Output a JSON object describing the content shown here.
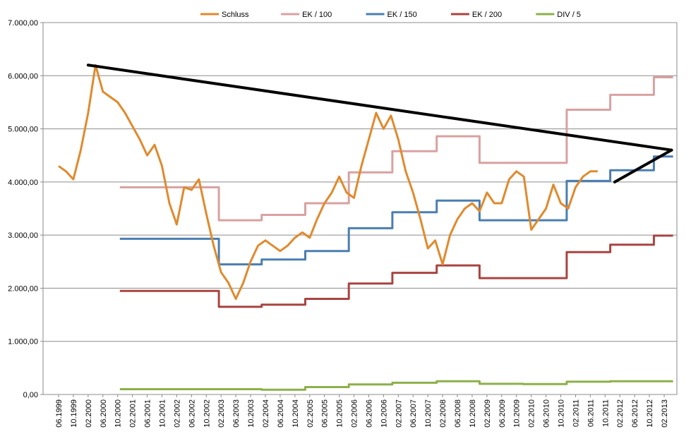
{
  "chart_data": {
    "type": "line",
    "title": "",
    "xlabel": "",
    "ylabel": "",
    "ylim": [
      0,
      7000
    ],
    "grid": "horizontal",
    "legend_position": "top",
    "y_ticks": [
      {
        "value": 0,
        "label": "0,00"
      },
      {
        "value": 1000,
        "label": "1.000,00"
      },
      {
        "value": 2000,
        "label": "2.000,00"
      },
      {
        "value": 3000,
        "label": "3.000,00"
      },
      {
        "value": 4000,
        "label": "4.000,00"
      },
      {
        "value": 5000,
        "label": "5.000,00"
      },
      {
        "value": 6000,
        "label": "6.000,00"
      },
      {
        "value": 7000,
        "label": "7.000,00"
      }
    ],
    "x_tick_labels": [
      "06.1999",
      "10.1999",
      "02.2000",
      "06.2000",
      "10.2000",
      "02.2001",
      "06.2001",
      "10.2001",
      "02.2002",
      "06.2002",
      "10.2002",
      "02.2003",
      "06.2003",
      "10.2003",
      "02.2004",
      "06.2004",
      "10.2004",
      "02.2005",
      "06.2005",
      "10.2005",
      "02.2006",
      "06.2006",
      "10.2006",
      "02.2007",
      "06.2007",
      "10.2007",
      "02.2008",
      "06.2008",
      "10.2008",
      "02.2009",
      "06.2009",
      "10.2009",
      "02.2010",
      "06.2010",
      "10.2010",
      "02.2011",
      "06.2011",
      "10.2011",
      "02.2012",
      "06.2012",
      "10.2012",
      "02.2013"
    ],
    "series": [
      {
        "name": "Schluss",
        "color": "#E08A2E",
        "points": [
          [
            0,
            4300
          ],
          [
            1,
            4200
          ],
          [
            2,
            4050
          ],
          [
            3,
            4600
          ],
          [
            4,
            5300
          ],
          [
            5,
            6200
          ],
          [
            6,
            5700
          ],
          [
            7,
            5600
          ],
          [
            8,
            5500
          ],
          [
            9,
            5300
          ],
          [
            10,
            5050
          ],
          [
            11,
            4800
          ],
          [
            12,
            4500
          ],
          [
            13,
            4700
          ],
          [
            14,
            4300
          ],
          [
            15,
            3600
          ],
          [
            16,
            3200
          ],
          [
            17,
            3900
          ],
          [
            18,
            3850
          ],
          [
            19,
            4050
          ],
          [
            20,
            3400
          ],
          [
            21,
            2800
          ],
          [
            22,
            2300
          ],
          [
            23,
            2100
          ],
          [
            24,
            1800
          ],
          [
            25,
            2100
          ],
          [
            26,
            2500
          ],
          [
            27,
            2800
          ],
          [
            28,
            2900
          ],
          [
            29,
            2800
          ],
          [
            30,
            2700
          ],
          [
            31,
            2800
          ],
          [
            32,
            2950
          ],
          [
            33,
            3050
          ],
          [
            34,
            2950
          ],
          [
            35,
            3300
          ],
          [
            36,
            3600
          ],
          [
            37,
            3800
          ],
          [
            38,
            4100
          ],
          [
            39,
            3800
          ],
          [
            40,
            3700
          ],
          [
            41,
            4300
          ],
          [
            42,
            4800
          ],
          [
            43,
            5300
          ],
          [
            44,
            5000
          ],
          [
            45,
            5250
          ],
          [
            46,
            4800
          ],
          [
            47,
            4200
          ],
          [
            48,
            3800
          ],
          [
            49,
            3300
          ],
          [
            50,
            2750
          ],
          [
            51,
            2900
          ],
          [
            52,
            2450
          ],
          [
            53,
            3000
          ],
          [
            54,
            3300
          ],
          [
            55,
            3500
          ],
          [
            56,
            3600
          ],
          [
            57,
            3450
          ],
          [
            58,
            3800
          ],
          [
            59,
            3600
          ],
          [
            60,
            3600
          ],
          [
            61,
            4050
          ],
          [
            62,
            4200
          ],
          [
            63,
            4100
          ],
          [
            64,
            3100
          ],
          [
            65,
            3300
          ],
          [
            66,
            3500
          ],
          [
            67,
            3950
          ],
          [
            68,
            3600
          ],
          [
            69,
            3500
          ],
          [
            70,
            3900
          ],
          [
            71,
            4100
          ],
          [
            72,
            4200
          ],
          [
            73,
            4200
          ]
        ]
      },
      {
        "name": "EK / 100",
        "color": "#D9A1A1",
        "steps": [
          [
            8.3,
            3900
          ],
          [
            21.7,
            3280
          ],
          [
            27.5,
            3380
          ],
          [
            33.4,
            3600
          ],
          [
            39.3,
            4180
          ],
          [
            45.2,
            4580
          ],
          [
            51.2,
            4860
          ],
          [
            57.0,
            4360
          ],
          [
            68.8,
            5360
          ],
          [
            74.7,
            5640
          ],
          [
            80.6,
            5970
          ]
        ]
      },
      {
        "name": "EK / 150",
        "color": "#4A7EB0",
        "steps": [
          [
            8.3,
            2930
          ],
          [
            21.7,
            2450
          ],
          [
            27.5,
            2540
          ],
          [
            33.4,
            2700
          ],
          [
            39.3,
            3130
          ],
          [
            45.2,
            3430
          ],
          [
            51.2,
            3650
          ],
          [
            57.0,
            3280
          ],
          [
            68.8,
            4020
          ],
          [
            74.7,
            4220
          ],
          [
            80.6,
            4480
          ]
        ]
      },
      {
        "name": "EK / 200",
        "color": "#A84440",
        "steps": [
          [
            8.3,
            1950
          ],
          [
            21.7,
            1650
          ],
          [
            27.5,
            1690
          ],
          [
            33.4,
            1800
          ],
          [
            39.3,
            2090
          ],
          [
            45.2,
            2290
          ],
          [
            51.2,
            2430
          ],
          [
            57.0,
            2190
          ],
          [
            68.8,
            2680
          ],
          [
            74.7,
            2820
          ],
          [
            80.6,
            2990
          ]
        ]
      },
      {
        "name": "DIV / 5",
        "color": "#8CB04A",
        "steps": [
          [
            8.3,
            100
          ],
          [
            27.5,
            90
          ],
          [
            33.4,
            140
          ],
          [
            39.3,
            190
          ],
          [
            45.2,
            220
          ],
          [
            51.2,
            250
          ],
          [
            57.0,
            200
          ],
          [
            62.9,
            195
          ],
          [
            68.8,
            240
          ],
          [
            74.7,
            250
          ]
        ]
      }
    ],
    "annotations": [
      {
        "type": "trendline",
        "color": "#000000",
        "from": [
          4.0,
          6200
        ],
        "to": [
          83.0,
          4600
        ]
      },
      {
        "type": "trendline",
        "color": "#000000",
        "from": [
          75.3,
          4000
        ],
        "to": [
          83.0,
          4600
        ]
      }
    ]
  }
}
